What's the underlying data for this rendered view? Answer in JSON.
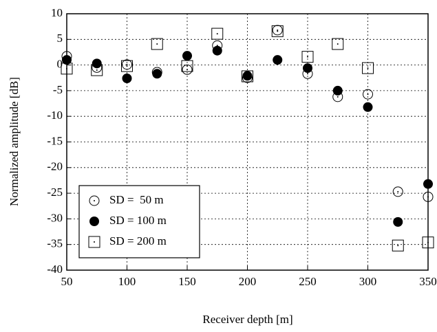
{
  "chart_data": {
    "type": "scatter",
    "xlabel": "Receiver depth [m]",
    "ylabel": "Normalized amplitude [dB]",
    "x": [
      50,
      75,
      100,
      125,
      150,
      175,
      200,
      225,
      250,
      275,
      300,
      325,
      350
    ],
    "series": [
      {
        "name": "SD =  50 m",
        "marker": "circle-open",
        "color": "#000000",
        "values": [
          1.7,
          -0.5,
          0.1,
          -1.4,
          -0.9,
          3.8,
          -2.5,
          6.8,
          -1.7,
          -6.2,
          -5.7,
          -24.7,
          -25.7
        ]
      },
      {
        "name": "SD = 100 m",
        "marker": "circle-filled",
        "color": "#000000",
        "values": [
          1.0,
          0.3,
          -2.6,
          -1.7,
          1.8,
          2.8,
          -2.1,
          1.0,
          -0.6,
          -5.0,
          -8.2,
          -30.6,
          -23.2
        ]
      },
      {
        "name": "SD = 200 m",
        "marker": "square-open",
        "color": "#000000",
        "values": [
          -0.7,
          -1.0,
          -0.2,
          4.1,
          -0.2,
          6.1,
          -2.2,
          6.6,
          1.6,
          4.1,
          -0.6,
          -35.2,
          -34.6
        ]
      }
    ],
    "xlim": [
      50,
      350
    ],
    "xticks": [
      50,
      100,
      150,
      200,
      250,
      300,
      350
    ],
    "ylim": [
      -40,
      10
    ],
    "yticks": [
      -40,
      -35,
      -30,
      -25,
      -20,
      -15,
      -10,
      -5,
      0,
      5,
      10
    ],
    "grid": true,
    "legend": "lower left"
  }
}
